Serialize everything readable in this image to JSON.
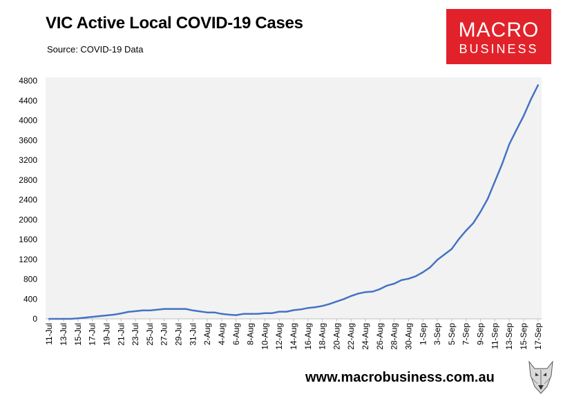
{
  "header": {
    "title": "VIC Active Local COVID-19 Cases",
    "source": "Source: COVID-19 Data"
  },
  "logo": {
    "line1": "MACRO",
    "line2": "BUSINESS",
    "bg_color": "#e2222a"
  },
  "footer": {
    "website": "www.macrobusiness.com.au",
    "mascot_icon": "wolf-mascot-icon"
  },
  "colors": {
    "line": "#4472c4",
    "plot_bg": "#f2f2f2"
  },
  "chart_data": {
    "type": "line",
    "title": "VIC Active Local COVID-19 Cases",
    "subtitle": "Source: COVID-19 Data",
    "xlabel": "",
    "ylabel": "",
    "ylim": [
      0,
      4800
    ],
    "yticks": [
      0,
      400,
      800,
      1200,
      1600,
      2000,
      2400,
      2800,
      3200,
      3600,
      4000,
      4400,
      4800
    ],
    "xtick_labels": [
      "11-Jul",
      "13-Jul",
      "15-Jul",
      "17-Jul",
      "19-Jul",
      "21-Jul",
      "23-Jul",
      "25-Jul",
      "27-Jul",
      "29-Jul",
      "31-Jul",
      "2-Aug",
      "4-Aug",
      "6-Aug",
      "8-Aug",
      "10-Aug",
      "12-Aug",
      "14-Aug",
      "16-Aug",
      "18-Aug",
      "20-Aug",
      "22-Aug",
      "24-Aug",
      "26-Aug",
      "28-Aug",
      "30-Aug",
      "1-Sep",
      "3-Sep",
      "5-Sep",
      "7-Sep",
      "9-Sep",
      "11-Sep",
      "13-Sep",
      "15-Sep",
      "17-Sep"
    ],
    "grid": false,
    "series": [
      {
        "x": [
          "11-Jul",
          "12-Jul",
          "13-Jul",
          "14-Jul",
          "15-Jul",
          "16-Jul",
          "17-Jul",
          "18-Jul",
          "19-Jul",
          "20-Jul",
          "21-Jul",
          "22-Jul",
          "23-Jul",
          "24-Jul",
          "25-Jul",
          "26-Jul",
          "27-Jul",
          "28-Jul",
          "29-Jul",
          "30-Jul",
          "31-Jul",
          "1-Aug",
          "2-Aug",
          "3-Aug",
          "4-Aug",
          "5-Aug",
          "6-Aug",
          "7-Aug",
          "8-Aug",
          "9-Aug",
          "10-Aug",
          "11-Aug",
          "12-Aug",
          "13-Aug",
          "14-Aug",
          "15-Aug",
          "16-Aug",
          "17-Aug",
          "18-Aug",
          "19-Aug",
          "20-Aug",
          "21-Aug",
          "22-Aug",
          "23-Aug",
          "24-Aug",
          "25-Aug",
          "26-Aug",
          "27-Aug",
          "28-Aug",
          "29-Aug",
          "30-Aug",
          "31-Aug",
          "1-Sep",
          "2-Sep",
          "3-Sep",
          "4-Sep",
          "5-Sep",
          "6-Sep",
          "7-Sep",
          "8-Sep",
          "9-Sep",
          "10-Sep",
          "11-Sep",
          "12-Sep",
          "13-Sep",
          "14-Sep",
          "15-Sep",
          "16-Sep",
          "17-Sep"
        ],
        "values": [
          0,
          0,
          0,
          0,
          10,
          25,
          40,
          55,
          70,
          85,
          110,
          140,
          155,
          170,
          170,
          185,
          200,
          200,
          200,
          200,
          170,
          150,
          130,
          130,
          100,
          85,
          75,
          100,
          100,
          100,
          115,
          115,
          145,
          145,
          175,
          190,
          220,
          235,
          260,
          300,
          350,
          400,
          460,
          510,
          540,
          550,
          600,
          670,
          710,
          780,
          810,
          860,
          940,
          1040,
          1190,
          1300,
          1410,
          1610,
          1780,
          1930,
          2160,
          2420,
          2770,
          3120,
          3520,
          3810,
          4090,
          4420,
          4710
        ]
      }
    ]
  }
}
